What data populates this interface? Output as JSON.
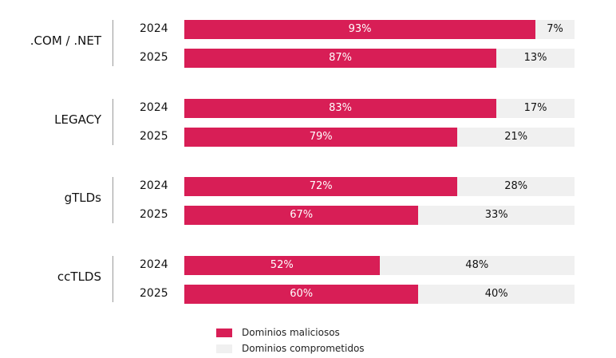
{
  "chart_data": {
    "type": "bar",
    "orientation": "horizontal",
    "stacked": true,
    "percent": true,
    "groups": [
      {
        "label": ".COM / .NET",
        "rows": [
          {
            "year": "2024",
            "malicious": 93,
            "compromised": 7
          },
          {
            "year": "2025",
            "malicious": 87,
            "compromised": 13
          }
        ]
      },
      {
        "label": "LEGACY",
        "rows": [
          {
            "year": "2024",
            "malicious": 83,
            "compromised": 17
          },
          {
            "year": "2025",
            "malicious": 79,
            "compromised": 21
          }
        ]
      },
      {
        "label": "gTLDs",
        "rows": [
          {
            "year": "2024",
            "malicious": 72,
            "compromised": 28
          },
          {
            "year": "2025",
            "malicious": 67,
            "compromised": 33
          }
        ]
      },
      {
        "label": "ccTLDS",
        "rows": [
          {
            "year": "2024",
            "malicious": 52,
            "compromised": 48
          },
          {
            "year": "2025",
            "malicious": 60,
            "compromised": 40
          }
        ]
      }
    ],
    "series": [
      {
        "name": "Dominios maliciosos",
        "color": "#d81e56"
      },
      {
        "name": "Dominios comprometidos",
        "color": "#f0f0f0"
      }
    ],
    "legend": "bottom",
    "grid": false
  }
}
